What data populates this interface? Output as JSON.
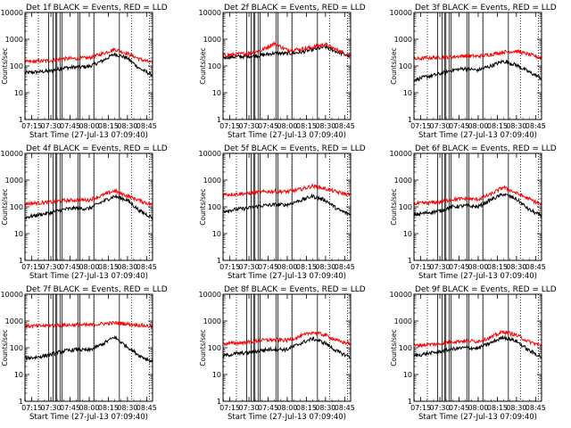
{
  "figure": {
    "ylabel": "Counts/sec",
    "xlabel": "Start Time (27-Jul-13 07:09:40)",
    "x_tick_labels": [
      "07:15",
      "07:30",
      "07:45",
      "08:00",
      "08:15",
      "08:30",
      "08:45"
    ],
    "y_tick_labels": [
      "1",
      "10",
      "100",
      "1000",
      "10000"
    ],
    "colors": {
      "events": "#000000",
      "lld": "#ff0000",
      "frame": "#000000",
      "background": "#ffffff"
    }
  },
  "chart_data": [
    {
      "type": "line",
      "title": "Det 1f BLACK = Events, RED = LLD",
      "xlabel": "Start Time (27-Jul-13 07:09:40)",
      "ylabel": "Counts/sec",
      "xlim_minutes": [
        0,
        100
      ],
      "ylim": [
        1,
        10000
      ],
      "y_scale": "log",
      "x_ticks": [
        "07:15",
        "07:30",
        "07:45",
        "08:00",
        "08:15",
        "08:30",
        "08:45"
      ],
      "x_minutes": [
        0,
        10,
        20,
        30,
        40,
        50,
        60,
        70,
        80,
        90,
        100
      ],
      "series": [
        {
          "name": "Events",
          "color": "#000000",
          "values": [
            55,
            60,
            65,
            85,
            90,
            95,
            150,
            280,
            200,
            80,
            45
          ]
        },
        {
          "name": "LLD",
          "color": "#ff0000",
          "values": [
            140,
            150,
            160,
            185,
            190,
            200,
            280,
            420,
            300,
            180,
            130
          ]
        }
      ]
    },
    {
      "type": "line",
      "title": "Det 2f BLACK = Events, RED = LLD",
      "xlabel": "Start Time (27-Jul-13 07:09:40)",
      "ylabel": "Counts/sec",
      "xlim_minutes": [
        0,
        100
      ],
      "ylim": [
        1,
        10000
      ],
      "y_scale": "log",
      "x_ticks": [
        "07:15",
        "07:30",
        "07:45",
        "08:00",
        "08:15",
        "08:30",
        "08:45"
      ],
      "x_minutes": [
        0,
        10,
        20,
        30,
        40,
        50,
        60,
        70,
        80,
        90,
        100
      ],
      "series": [
        {
          "name": "Events",
          "color": "#000000",
          "values": [
            210,
            220,
            230,
            250,
            300,
            290,
            320,
            400,
            520,
            330,
            220
          ]
        },
        {
          "name": "LLD",
          "color": "#ff0000",
          "values": [
            250,
            270,
            300,
            380,
            700,
            400,
            420,
            500,
            650,
            380,
            250
          ]
        }
      ]
    },
    {
      "type": "line",
      "title": "Det 3f BLACK = Events, RED = LLD",
      "xlabel": "Start Time (27-Jul-13 07:09:40)",
      "ylabel": "Counts/sec",
      "xlim_minutes": [
        0,
        100
      ],
      "ylim": [
        1,
        10000
      ],
      "y_scale": "log",
      "x_ticks": [
        "07:15",
        "07:30",
        "07:45",
        "08:00",
        "08:15",
        "08:30",
        "08:45"
      ],
      "x_minutes": [
        0,
        10,
        20,
        30,
        40,
        50,
        60,
        70,
        80,
        90,
        100
      ],
      "series": [
        {
          "name": "Events",
          "color": "#000000",
          "values": [
            30,
            40,
            50,
            70,
            80,
            70,
            100,
            150,
            110,
            60,
            35
          ]
        },
        {
          "name": "LLD",
          "color": "#ff0000",
          "values": [
            180,
            200,
            210,
            220,
            240,
            230,
            270,
            330,
            360,
            270,
            200
          ]
        }
      ]
    },
    {
      "type": "line",
      "title": "Det 4f BLACK = Events, RED = LLD",
      "xlabel": "Start Time (27-Jul-13 07:09:40)",
      "ylabel": "Counts/sec",
      "xlim_minutes": [
        0,
        100
      ],
      "ylim": [
        1,
        10000
      ],
      "y_scale": "log",
      "x_ticks": [
        "07:15",
        "07:30",
        "07:45",
        "08:00",
        "08:15",
        "08:30",
        "08:45"
      ],
      "x_minutes": [
        0,
        10,
        20,
        30,
        40,
        50,
        60,
        70,
        80,
        90,
        100
      ],
      "series": [
        {
          "name": "Events",
          "color": "#000000",
          "values": [
            40,
            50,
            60,
            80,
            90,
            85,
            150,
            250,
            180,
            70,
            40
          ]
        },
        {
          "name": "LLD",
          "color": "#ff0000",
          "values": [
            130,
            140,
            150,
            170,
            180,
            180,
            260,
            400,
            260,
            170,
            120
          ]
        }
      ]
    },
    {
      "type": "line",
      "title": "Det 5f BLACK = Events, RED = LLD",
      "xlabel": "Start Time (27-Jul-13 07:09:40)",
      "ylabel": "Counts/sec",
      "xlim_minutes": [
        0,
        100
      ],
      "ylim": [
        1,
        10000
      ],
      "y_scale": "log",
      "x_ticks": [
        "07:15",
        "07:30",
        "07:45",
        "08:00",
        "08:15",
        "08:30",
        "08:45"
      ],
      "x_minutes": [
        0,
        10,
        20,
        30,
        40,
        50,
        60,
        70,
        80,
        90,
        100
      ],
      "series": [
        {
          "name": "Events",
          "color": "#000000",
          "values": [
            70,
            80,
            90,
            110,
            120,
            120,
            170,
            250,
            180,
            80,
            50
          ]
        },
        {
          "name": "LLD",
          "color": "#ff0000",
          "values": [
            290,
            300,
            320,
            360,
            380,
            370,
            440,
            600,
            480,
            350,
            280
          ]
        }
      ]
    },
    {
      "type": "line",
      "title": "Det 6f BLACK = Events, RED = LLD",
      "xlabel": "Start Time (27-Jul-13 07:09:40)",
      "ylabel": "Counts/sec",
      "xlim_minutes": [
        0,
        100
      ],
      "ylim": [
        1,
        10000
      ],
      "y_scale": "log",
      "x_ticks": [
        "07:15",
        "07:30",
        "07:45",
        "08:00",
        "08:15",
        "08:30",
        "08:45"
      ],
      "x_minutes": [
        0,
        10,
        20,
        30,
        40,
        50,
        60,
        70,
        80,
        90,
        100
      ],
      "series": [
        {
          "name": "Events",
          "color": "#000000",
          "values": [
            50,
            60,
            70,
            100,
            110,
            100,
            180,
            300,
            200,
            80,
            45
          ]
        },
        {
          "name": "LLD",
          "color": "#ff0000",
          "values": [
            130,
            140,
            150,
            190,
            200,
            190,
            290,
            550,
            330,
            200,
            120
          ]
        }
      ]
    },
    {
      "type": "line",
      "title": "Det 7f BLACK = Events, RED = LLD",
      "xlabel": "Start Time (27-Jul-13 07:09:40)",
      "ylabel": "Counts/sec",
      "xlim_minutes": [
        0,
        100
      ],
      "ylim": [
        1,
        10000
      ],
      "y_scale": "log",
      "x_ticks": [
        "07:15",
        "07:30",
        "07:45",
        "08:00",
        "08:15",
        "08:30",
        "08:45"
      ],
      "x_minutes": [
        0,
        10,
        20,
        30,
        40,
        50,
        60,
        70,
        80,
        90,
        100
      ],
      "series": [
        {
          "name": "Events",
          "color": "#000000",
          "values": [
            40,
            45,
            55,
            75,
            85,
            80,
            130,
            250,
            110,
            50,
            30
          ]
        },
        {
          "name": "LLD",
          "color": "#ff0000",
          "values": [
            650,
            650,
            680,
            700,
            720,
            700,
            780,
            850,
            780,
            700,
            620
          ]
        }
      ]
    },
    {
      "type": "line",
      "title": "Det 8f BLACK = Events, RED = LLD",
      "xlabel": "Start Time (27-Jul-13 07:09:40)",
      "ylabel": "Counts/sec",
      "xlim_minutes": [
        0,
        100
      ],
      "ylim": [
        1,
        10000
      ],
      "y_scale": "log",
      "x_ticks": [
        "07:15",
        "07:30",
        "07:45",
        "08:00",
        "08:15",
        "08:30",
        "08:45"
      ],
      "x_minutes": [
        0,
        10,
        20,
        30,
        40,
        50,
        60,
        70,
        80,
        90,
        100
      ],
      "series": [
        {
          "name": "Events",
          "color": "#000000",
          "values": [
            50,
            60,
            65,
            80,
            90,
            85,
            140,
            220,
            150,
            70,
            45
          ]
        },
        {
          "name": "LLD",
          "color": "#ff0000",
          "values": [
            140,
            150,
            160,
            190,
            200,
            190,
            260,
            380,
            300,
            180,
            140
          ]
        }
      ]
    },
    {
      "type": "line",
      "title": "Det 9f BLACK = Events, RED = LLD",
      "xlabel": "Start Time (27-Jul-13 07:09:40)",
      "ylabel": "Counts/sec",
      "xlim_minutes": [
        0,
        100
      ],
      "ylim": [
        1,
        10000
      ],
      "y_scale": "log",
      "x_ticks": [
        "07:15",
        "07:30",
        "07:45",
        "08:00",
        "08:15",
        "08:30",
        "08:45"
      ],
      "x_minutes": [
        0,
        10,
        20,
        30,
        40,
        50,
        60,
        70,
        80,
        90,
        100
      ],
      "series": [
        {
          "name": "Events",
          "color": "#000000",
          "values": [
            50,
            60,
            70,
            90,
            100,
            95,
            150,
            250,
            180,
            80,
            45
          ]
        },
        {
          "name": "LLD",
          "color": "#ff0000",
          "values": [
            120,
            130,
            140,
            170,
            180,
            175,
            240,
            400,
            300,
            170,
            120
          ]
        }
      ]
    }
  ]
}
